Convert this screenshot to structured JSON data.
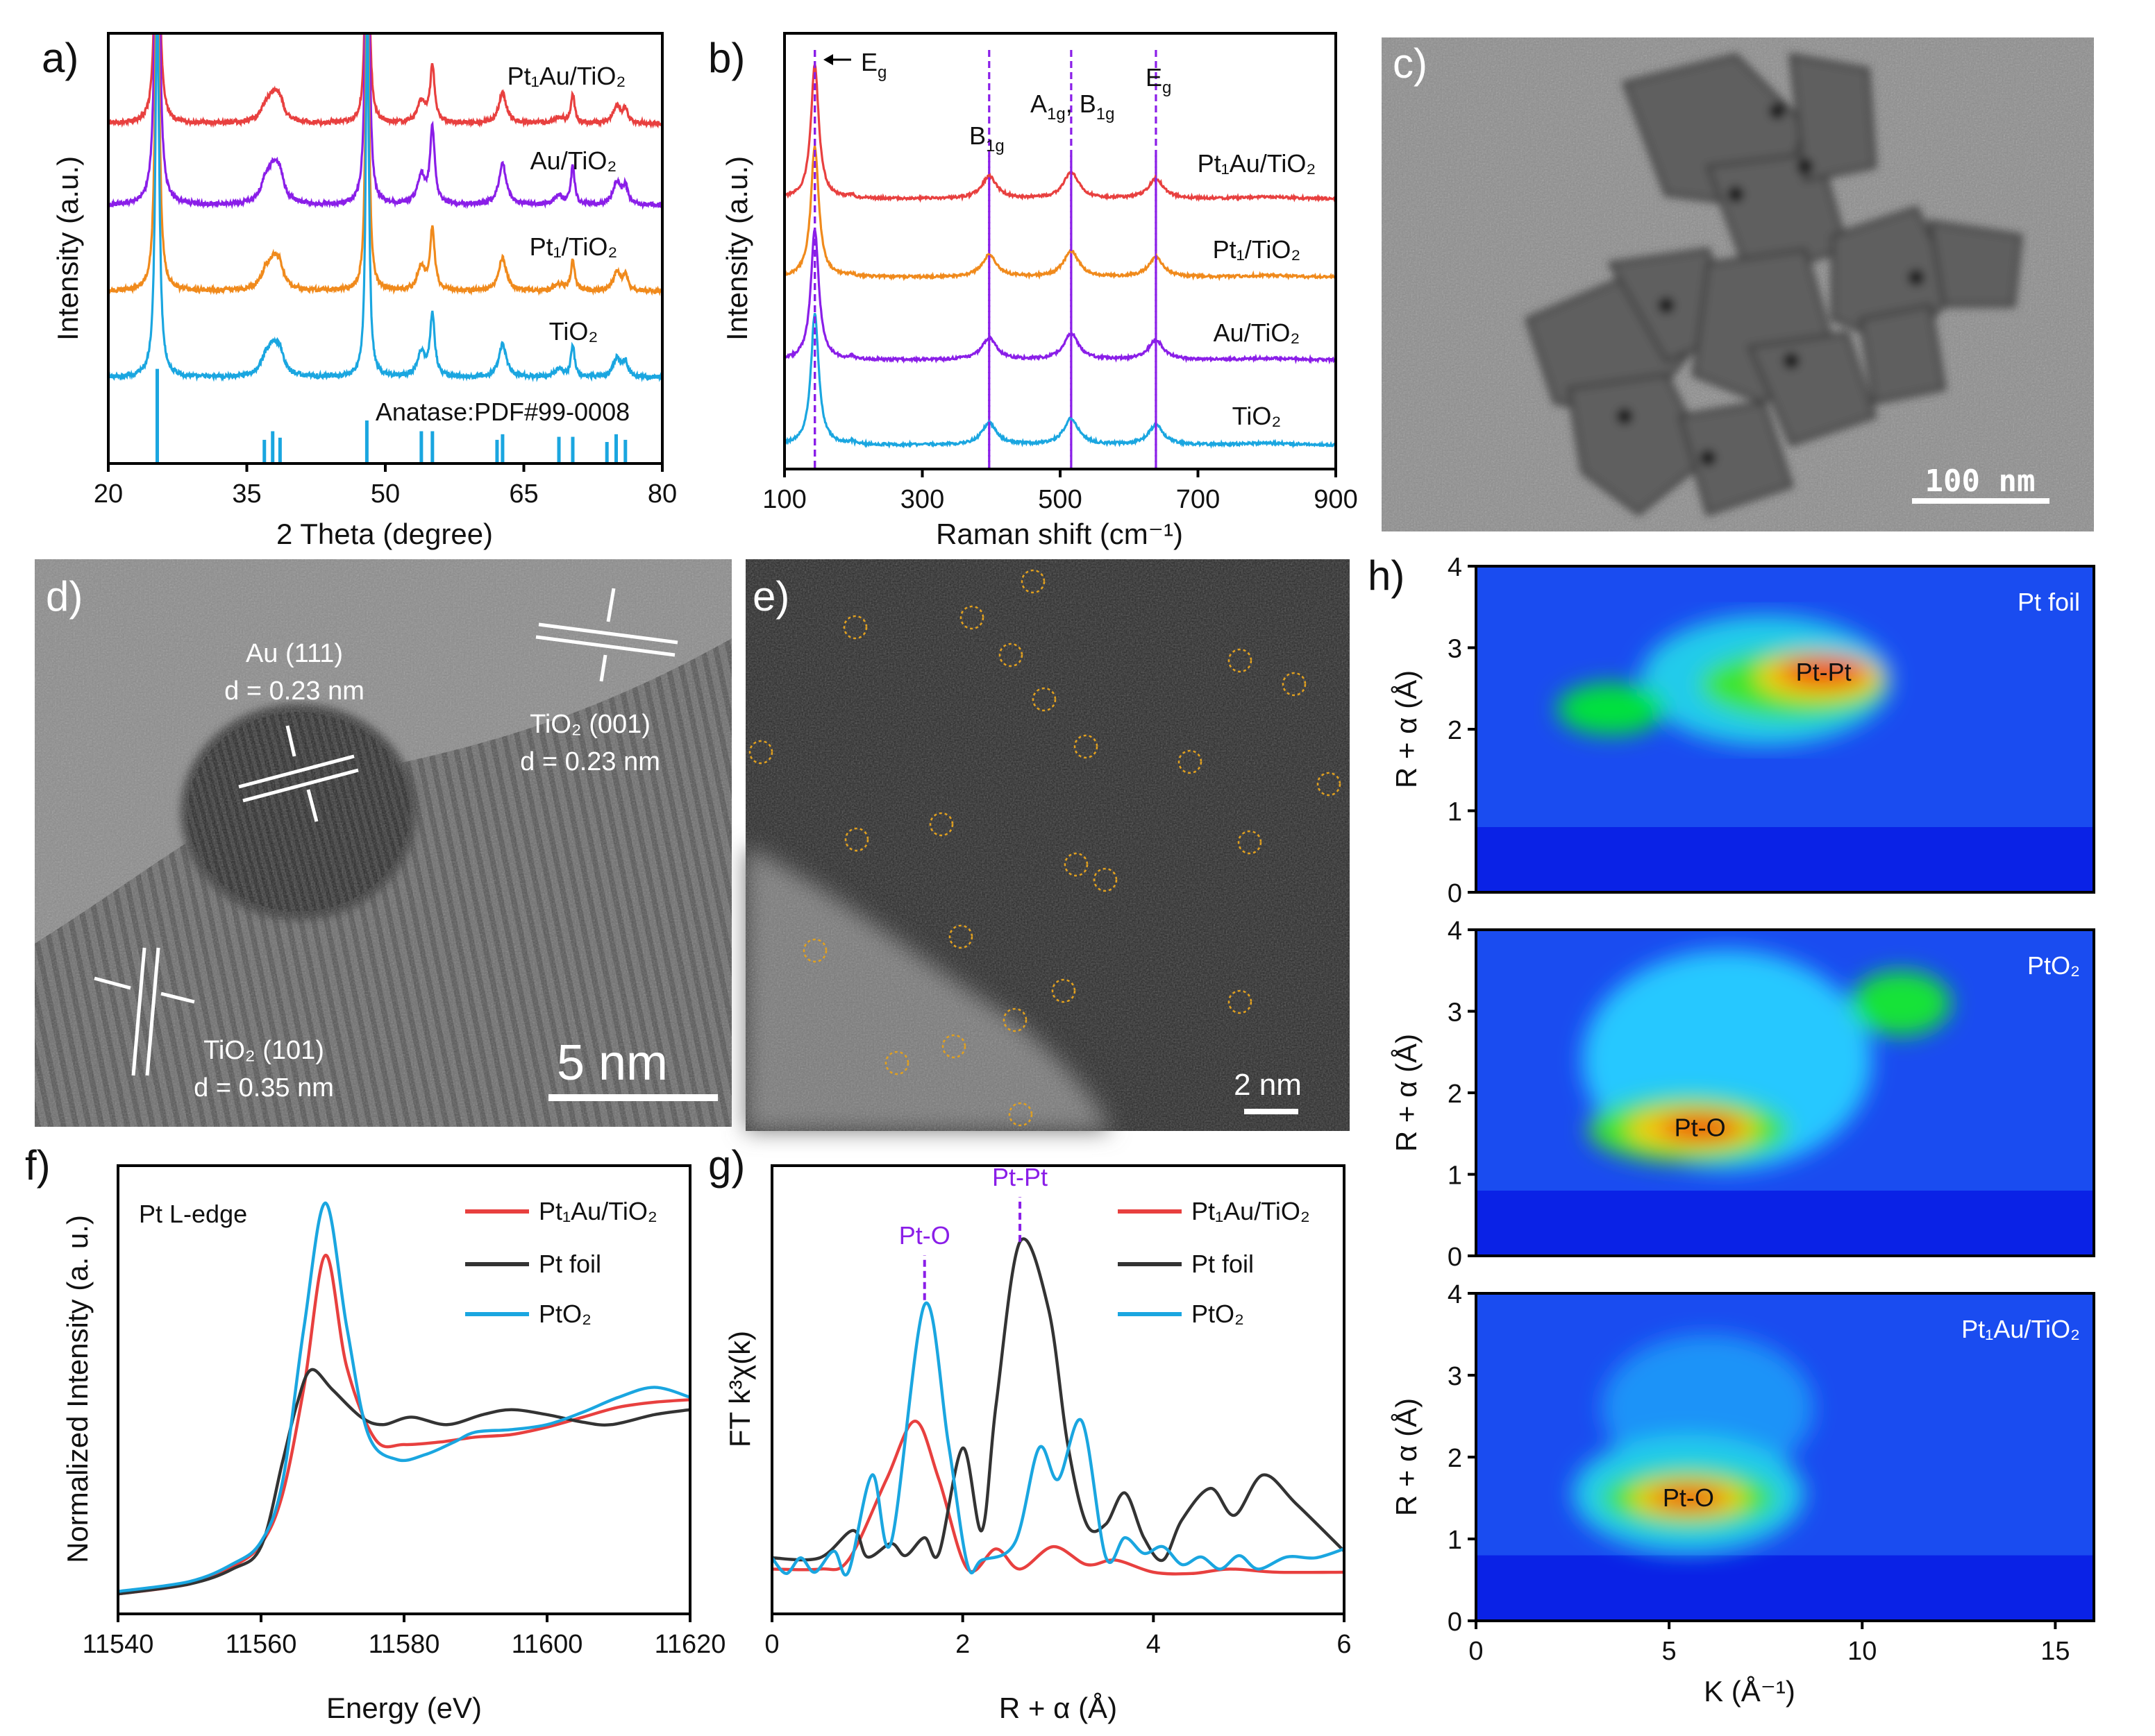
{
  "panel_labels": {
    "a": "a)",
    "b": "b)",
    "c": "c)",
    "d": "d)",
    "e": "e)",
    "f": "f)",
    "g": "g)",
    "h": "h)"
  },
  "chart_data": [
    {
      "id": "a",
      "type": "line",
      "title": "",
      "xlabel": "2 Theta (degree)",
      "ylabel": "Intensity (a.u.)",
      "xlim": [
        20,
        80
      ],
      "ylim": [
        0,
        100
      ],
      "xticks": [
        "20",
        "35",
        "50",
        "65",
        "80"
      ],
      "peaks": [
        [
          25.3,
          80,
          0.5
        ],
        [
          37.0,
          2.5,
          1.2
        ],
        [
          37.9,
          6,
          1.6
        ],
        [
          38.6,
          3,
          1.0
        ],
        [
          48.05,
          80,
          0.4
        ],
        [
          53.9,
          5,
          1.0
        ],
        [
          55.1,
          13,
          0.6
        ],
        [
          62.7,
          7,
          1.0
        ],
        [
          68.8,
          1.5,
          1.2
        ],
        [
          70.3,
          6.5,
          0.5
        ],
        [
          75.1,
          4,
          1.0
        ],
        [
          76.0,
          3,
          0.6
        ]
      ],
      "series": [
        {
          "name": "Pt₁Au/TiO₂",
          "color": "#e8403f",
          "offset": 79,
          "scale": 1.0
        },
        {
          "name": "Au/TiO₂",
          "color": "#8a1ee8",
          "offset": 60,
          "scale": 1.35
        },
        {
          "name": "Pt₁/TiO₂",
          "color": "#f08a1c",
          "offset": 40,
          "scale": 1.1
        },
        {
          "name": "TiO₂",
          "color": "#1aa6e0",
          "offset": 20,
          "scale": 1.1
        }
      ],
      "reference": {
        "label": "Anatase:PDF#99-0008",
        "color": "#1aa6e0",
        "sticks": [
          [
            25.3,
            22
          ],
          [
            36.9,
            5.5
          ],
          [
            37.8,
            7.5
          ],
          [
            38.6,
            6
          ],
          [
            48.0,
            10
          ],
          [
            53.9,
            7.5
          ],
          [
            55.1,
            7.5
          ],
          [
            62.1,
            5.5
          ],
          [
            62.7,
            6.8
          ],
          [
            68.8,
            6.2
          ],
          [
            70.3,
            6.2
          ],
          [
            74.0,
            5
          ],
          [
            75.0,
            6.8
          ],
          [
            76.0,
            5.5
          ]
        ]
      }
    },
    {
      "id": "b",
      "type": "line",
      "title": "",
      "xlabel": "Raman shift (cm⁻¹)",
      "ylabel": "Intensity (a.u.)",
      "xlim": [
        100,
        900
      ],
      "ylim": [
        0,
        100
      ],
      "xticks": [
        "100",
        "300",
        "500",
        "700",
        "900"
      ],
      "peaks": [
        [
          144,
          30,
          14
        ],
        [
          197,
          0.6,
          10
        ],
        [
          397,
          5,
          26
        ],
        [
          516,
          6,
          26
        ],
        [
          639,
          4.5,
          26
        ],
        [
          800,
          0.4,
          80
        ]
      ],
      "series": [
        {
          "name": "Pt₁Au/TiO₂",
          "color": "#e8403f",
          "offset": 62,
          "scale": 1.02
        },
        {
          "name": "Pt₁/TiO₂",
          "color": "#f08a1c",
          "offset": 44,
          "scale": 1.0
        },
        {
          "name": "Au/TiO₂",
          "color": "#8a1ee8",
          "offset": 25,
          "scale": 1.0
        },
        {
          "name": "TiO₂",
          "color": "#1aa6e0",
          "offset": 5.5,
          "scale": 1.0
        }
      ],
      "modes": [
        {
          "pos": 144,
          "main": "E",
          "sub": "g"
        },
        {
          "pos": 397,
          "main": "B",
          "sub": "1g"
        },
        {
          "pos": 516,
          "main": "A",
          "sub": "1g",
          "main2": ", B",
          "sub2": "1g"
        },
        {
          "pos": 639,
          "main": "E",
          "sub": "g"
        }
      ],
      "guide_color": "#8a1ee8"
    },
    {
      "id": "f",
      "type": "line",
      "xlabel": "Energy (eV)",
      "ylabel": "Normalized Intensity (a. u.)",
      "annotation": "Pt L-edge",
      "xlim": [
        11540,
        11620
      ],
      "ylim": [
        0,
        1.8
      ],
      "xticks": [
        "11540",
        "11560",
        "11580",
        "11600",
        "11620"
      ],
      "series": [
        {
          "name": "Pt₁Au/TiO₂",
          "color": "#e8403f",
          "points": [
            [
              11540,
              0.08
            ],
            [
              11550,
              0.12
            ],
            [
              11556,
              0.19
            ],
            [
              11560,
              0.28
            ],
            [
              11563,
              0.48
            ],
            [
              11566,
              0.91
            ],
            [
              11569,
              1.44
            ],
            [
              11572,
              0.99
            ],
            [
              11576,
              0.7
            ],
            [
              11580,
              0.68
            ],
            [
              11585,
              0.69
            ],
            [
              11590,
              0.71
            ],
            [
              11595,
              0.72
            ],
            [
              11600,
              0.75
            ],
            [
              11605,
              0.79
            ],
            [
              11610,
              0.83
            ],
            [
              11615,
              0.85
            ],
            [
              11620,
              0.86
            ]
          ]
        },
        {
          "name": "Pt foil",
          "color": "#333333",
          "points": [
            [
              11540,
              0.08
            ],
            [
              11550,
              0.12
            ],
            [
              11556,
              0.18
            ],
            [
              11560,
              0.27
            ],
            [
              11563,
              0.61
            ],
            [
              11565,
              0.84
            ],
            [
              11567,
              0.98
            ],
            [
              11570,
              0.9
            ],
            [
              11574,
              0.79
            ],
            [
              11577,
              0.76
            ],
            [
              11581,
              0.79
            ],
            [
              11586,
              0.76
            ],
            [
              11591,
              0.8
            ],
            [
              11595,
              0.82
            ],
            [
              11600,
              0.8
            ],
            [
              11605,
              0.77
            ],
            [
              11609,
              0.76
            ],
            [
              11615,
              0.8
            ],
            [
              11620,
              0.82
            ]
          ]
        },
        {
          "name": "PtO₂",
          "color": "#1aa6e0",
          "points": [
            [
              11540,
              0.09
            ],
            [
              11550,
              0.13
            ],
            [
              11556,
              0.2
            ],
            [
              11560,
              0.29
            ],
            [
              11563,
              0.53
            ],
            [
              11566,
              1.15
            ],
            [
              11569,
              1.65
            ],
            [
              11572,
              1.15
            ],
            [
              11575,
              0.72
            ],
            [
              11579,
              0.62
            ],
            [
              11583,
              0.64
            ],
            [
              11587,
              0.69
            ],
            [
              11590,
              0.73
            ],
            [
              11595,
              0.74
            ],
            [
              11600,
              0.76
            ],
            [
              11605,
              0.81
            ],
            [
              11610,
              0.87
            ],
            [
              11615,
              0.91
            ],
            [
              11620,
              0.87
            ]
          ]
        }
      ]
    },
    {
      "id": "g",
      "type": "line",
      "xlabel": "R + α (Å)",
      "ylabel": "FT k³χ(k)",
      "xlim": [
        0,
        6
      ],
      "ylim": [
        0,
        1
      ],
      "xticks": [
        "0",
        "2",
        "4",
        "6"
      ],
      "markers": [
        {
          "label": "Pt-O",
          "x": 1.6,
          "y0": 0.7,
          "y1": 0.8
        },
        {
          "label": "Pt-Pt",
          "x": 2.6,
          "y0": 0.83,
          "y1": 0.93
        }
      ],
      "marker_color": "#8a1ee8",
      "series": [
        {
          "name": "Pt₁Au/TiO₂",
          "color": "#e8403f",
          "points": [
            [
              0,
              0.1
            ],
            [
              0.5,
              0.1
            ],
            [
              0.8,
              0.12
            ],
            [
              1.2,
              0.3
            ],
            [
              1.5,
              0.43
            ],
            [
              1.75,
              0.3
            ],
            [
              2.05,
              0.1
            ],
            [
              2.35,
              0.145
            ],
            [
              2.6,
              0.1
            ],
            [
              2.95,
              0.15
            ],
            [
              3.3,
              0.11
            ],
            [
              3.6,
              0.12
            ],
            [
              4.0,
              0.093
            ],
            [
              4.4,
              0.09
            ],
            [
              4.8,
              0.1
            ],
            [
              5.3,
              0.093
            ],
            [
              6,
              0.093
            ]
          ]
        },
        {
          "name": "Pt foil",
          "color": "#333333",
          "points": [
            [
              0,
              0.125
            ],
            [
              0.5,
              0.125
            ],
            [
              0.85,
              0.186
            ],
            [
              1.0,
              0.127
            ],
            [
              1.25,
              0.157
            ],
            [
              1.4,
              0.13
            ],
            [
              1.6,
              0.17
            ],
            [
              1.75,
              0.135
            ],
            [
              2.0,
              0.37
            ],
            [
              2.2,
              0.186
            ],
            [
              2.35,
              0.467
            ],
            [
              2.6,
              0.83
            ],
            [
              2.9,
              0.68
            ],
            [
              3.1,
              0.38
            ],
            [
              3.3,
              0.2
            ],
            [
              3.5,
              0.2
            ],
            [
              3.7,
              0.27
            ],
            [
              3.9,
              0.17
            ],
            [
              4.1,
              0.12
            ],
            [
              4.3,
              0.21
            ],
            [
              4.6,
              0.28
            ],
            [
              4.85,
              0.22
            ],
            [
              5.15,
              0.31
            ],
            [
              5.5,
              0.245
            ],
            [
              6,
              0.14
            ]
          ]
        },
        {
          "name": "PtO₂",
          "color": "#1aa6e0",
          "points": [
            [
              0,
              0.125
            ],
            [
              0.15,
              0.09
            ],
            [
              0.3,
              0.125
            ],
            [
              0.45,
              0.093
            ],
            [
              0.65,
              0.14
            ],
            [
              0.8,
              0.093
            ],
            [
              1.05,
              0.31
            ],
            [
              1.25,
              0.16
            ],
            [
              1.6,
              0.69
            ],
            [
              1.85,
              0.38
            ],
            [
              2.05,
              0.11
            ],
            [
              2.2,
              0.12
            ],
            [
              2.55,
              0.16
            ],
            [
              2.8,
              0.37
            ],
            [
              3.0,
              0.3
            ],
            [
              3.25,
              0.43
            ],
            [
              3.5,
              0.127
            ],
            [
              3.7,
              0.17
            ],
            [
              3.9,
              0.135
            ],
            [
              4.1,
              0.15
            ],
            [
              4.3,
              0.11
            ],
            [
              4.5,
              0.127
            ],
            [
              4.7,
              0.1
            ],
            [
              4.9,
              0.13
            ],
            [
              5.1,
              0.1
            ],
            [
              5.4,
              0.127
            ],
            [
              5.7,
              0.125
            ],
            [
              6,
              0.145
            ]
          ]
        }
      ]
    },
    {
      "id": "h",
      "type": "heatmap",
      "xlabel": "K (Å⁻¹)",
      "ylabel": "R + α (Å)",
      "xlim": [
        0,
        16
      ],
      "ylim": [
        0,
        4
      ],
      "xticks": [
        "0",
        "5",
        "10",
        "15"
      ],
      "yticks": [
        "0",
        "1",
        "2",
        "3",
        "4"
      ],
      "maps": [
        {
          "name": "Pt foil",
          "peak_label": "Pt-Pt",
          "peak": [
            9.0,
            2.7
          ],
          "features": [
            [
              7.5,
              2.6,
              6.5,
              0.8,
              0.32
            ],
            [
              3.5,
              2.25,
              2.8,
              0.32,
              0.5
            ],
            [
              8.2,
              2.55,
              4.8,
              0.42,
              0.55
            ],
            [
              8.9,
              2.65,
              3.3,
              0.28,
              0.75
            ],
            [
              9.0,
              2.7,
              2.3,
              0.17,
              0.95
            ]
          ]
        },
        {
          "name": "PtO₂",
          "peak_label": "Pt-O",
          "peak": [
            5.8,
            1.57
          ],
          "features": [
            [
              6.5,
              2.4,
              7.5,
              1.35,
              0.3
            ],
            [
              11,
              3.1,
              2.6,
              0.4,
              0.52
            ],
            [
              5.5,
              1.55,
              5.2,
              0.42,
              0.55
            ],
            [
              5.6,
              1.56,
              3.4,
              0.26,
              0.75
            ],
            [
              5.8,
              1.57,
              2.1,
              0.15,
              0.95
            ]
          ]
        },
        {
          "name": "Pt₁Au/TiO₂",
          "peak_label": "Pt-O",
          "peak": [
            5.5,
            1.5
          ],
          "features": [
            [
              6.0,
              2.6,
              5.5,
              0.9,
              0.2
            ],
            [
              5.5,
              1.55,
              6.0,
              0.72,
              0.32
            ],
            [
              5.5,
              1.5,
              4.5,
              0.36,
              0.55
            ],
            [
              5.5,
              1.5,
              3.0,
              0.23,
              0.75
            ],
            [
              5.5,
              1.5,
              1.9,
              0.13,
              0.95
            ]
          ]
        }
      ]
    }
  ],
  "images": {
    "c": {
      "scale_bar": "100 nm"
    },
    "d": {
      "au_plane": "Au (111)",
      "au_d": "d = 0.23 nm",
      "tio2_001": "TiO₂ (001)",
      "tio2_001_d": "d = 0.23 nm",
      "tio2_101": "TiO₂ (101)",
      "tio2_101_d": "d = 0.35 nm",
      "scale_bar": "5 nm"
    },
    "e": {
      "scale_bar": "2 nm"
    }
  }
}
